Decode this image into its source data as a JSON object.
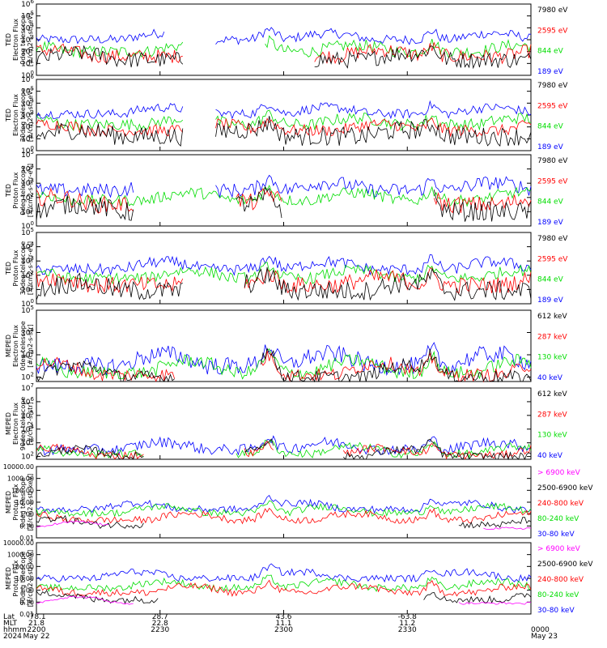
{
  "figure": {
    "colors": {
      "black": "#000000",
      "blue": "#0000ff",
      "red": "#ff0000",
      "green": "#00dd00",
      "magenta": "#ff00ff"
    }
  },
  "chart_data": [
    {
      "type": "line",
      "ylabel_lines": [
        "TED",
        "Electron Flux",
        "0deg telescope",
        "[#/cm2-s-str-eV]"
      ],
      "yscale": "log",
      "ylim_exp": [
        0,
        6
      ],
      "ytick_exps": [
        0,
        1,
        2,
        3,
        4,
        5,
        6
      ],
      "series": [
        {
          "name": "7980 eV",
          "color": "#000000",
          "level": 1.3,
          "noise": 0.7,
          "gaps": [
            [
              0.3,
              0.56
            ]
          ]
        },
        {
          "name": "2595 eV",
          "color": "#ff0000",
          "level": 1.6,
          "noise": 0.6,
          "gaps": [
            [
              0.3,
              0.56
            ]
          ]
        },
        {
          "name": "844 eV",
          "color": "#00dd00",
          "level": 2.0,
          "noise": 0.5,
          "gaps": [
            [
              0.3,
              0.46
            ]
          ]
        },
        {
          "name": "189 eV",
          "color": "#0000ff",
          "level": 3.0,
          "noise": 0.4,
          "gaps": [
            [
              0.26,
              0.36
            ]
          ]
        }
      ]
    },
    {
      "type": "line",
      "ylabel_lines": [
        "TED",
        "Electron Flux",
        "30deg telescope",
        "[#/cm2-s-str-eV]"
      ],
      "yscale": "log",
      "ylim_exp": [
        0,
        6
      ],
      "ytick_exps": [
        0,
        1,
        2,
        3,
        4,
        5,
        6
      ],
      "series": [
        {
          "name": "7980 eV",
          "color": "#000000",
          "level": 1.2,
          "noise": 0.8,
          "gaps": [
            [
              0.3,
              0.36
            ]
          ]
        },
        {
          "name": "2595 eV",
          "color": "#ff0000",
          "level": 1.7,
          "noise": 0.5,
          "gaps": [
            [
              0.3,
              0.36
            ]
          ]
        },
        {
          "name": "844 eV",
          "color": "#00dd00",
          "level": 2.2,
          "noise": 0.5,
          "gaps": [
            [
              0.3,
              0.36
            ]
          ]
        },
        {
          "name": "189 eV",
          "color": "#0000ff",
          "level": 3.1,
          "noise": 0.4,
          "gaps": [
            [
              0.3,
              0.36
            ]
          ]
        }
      ]
    },
    {
      "type": "line",
      "ylabel_lines": [
        "TED",
        "Proton Flux",
        "0deg telescope",
        "[#/cm2-s-str-eV]"
      ],
      "yscale": "log",
      "ylim_exp": [
        0,
        5
      ],
      "ytick_exps": [
        0,
        1,
        2,
        3,
        4,
        5
      ],
      "series": [
        {
          "name": "7980 eV",
          "color": "#000000",
          "level": 1.0,
          "noise": 0.7,
          "gaps": [
            [
              0.2,
              0.4
            ],
            [
              0.5,
              0.8
            ]
          ]
        },
        {
          "name": "2595 eV",
          "color": "#ff0000",
          "level": 1.5,
          "noise": 0.6,
          "gaps": [
            [
              0.2,
              0.4
            ],
            [
              0.5,
              0.8
            ]
          ]
        },
        {
          "name": "844 eV",
          "color": "#00dd00",
          "level": 1.8,
          "noise": 0.4,
          "gaps": []
        },
        {
          "name": "189 eV",
          "color": "#0000ff",
          "level": 2.5,
          "noise": 0.5,
          "gaps": [
            [
              0.2,
              0.36
            ]
          ]
        }
      ]
    },
    {
      "type": "line",
      "ylabel_lines": [
        "TED",
        "Proton Flux",
        "30deg telescope",
        "[#/cm2-s-str-eV]"
      ],
      "yscale": "log",
      "ylim_exp": [
        0,
        5
      ],
      "ytick_exps": [
        0,
        1,
        2,
        3,
        4,
        5
      ],
      "series": [
        {
          "name": "7980 eV",
          "color": "#000000",
          "level": 0.9,
          "noise": 0.7,
          "gaps": [
            [
              0.3,
              0.42
            ]
          ]
        },
        {
          "name": "2595 eV",
          "color": "#ff0000",
          "level": 1.3,
          "noise": 0.6,
          "gaps": [
            [
              0.3,
              0.42
            ]
          ]
        },
        {
          "name": "844 eV",
          "color": "#00dd00",
          "level": 1.8,
          "noise": 0.4,
          "gaps": []
        },
        {
          "name": "189 eV",
          "color": "#0000ff",
          "level": 2.4,
          "noise": 0.4,
          "gaps": []
        }
      ]
    },
    {
      "type": "line",
      "ylabel_lines": [
        "MEPED",
        "Electron Flux",
        "0deg telescope",
        "[#/cm2-s-str]"
      ],
      "yscale": "log",
      "ylim_exp": [
        1.8,
        5
      ],
      "ytick_exps": [
        2,
        3,
        4,
        5
      ],
      "series": [
        {
          "name": "612 keV",
          "color": "#000000",
          "level": 2.0,
          "noise": 0.3,
          "gaps": [
            [
              0.28,
              0.45
            ]
          ]
        },
        {
          "name": "287 keV",
          "color": "#ff0000",
          "level": 2.1,
          "noise": 0.3,
          "gaps": [
            [
              0.28,
              0.45
            ]
          ]
        },
        {
          "name": "130 keV",
          "color": "#00dd00",
          "level": 2.2,
          "noise": 0.3,
          "gaps": []
        },
        {
          "name": "40 keV",
          "color": "#0000ff",
          "level": 2.5,
          "noise": 0.4,
          "gaps": []
        }
      ]
    },
    {
      "type": "line",
      "ylabel_lines": [
        "MEPED",
        "Electron Flux",
        "90deg telescope",
        "[#/cm2-s-str]"
      ],
      "yscale": "log",
      "ylim_exp": [
        1.8,
        7
      ],
      "ytick_exps": [
        2,
        3,
        4,
        5,
        6,
        7
      ],
      "series": [
        {
          "name": "612 keV",
          "color": "#000000",
          "level": 2.0,
          "noise": 0.3,
          "gaps": [
            [
              0.22,
              0.42
            ],
            [
              0.48,
              0.62
            ]
          ]
        },
        {
          "name": "287 keV",
          "color": "#ff0000",
          "level": 2.1,
          "noise": 0.3,
          "gaps": [
            [
              0.22,
              0.42
            ],
            [
              0.48,
              0.62
            ]
          ]
        },
        {
          "name": "130 keV",
          "color": "#00dd00",
          "level": 2.2,
          "noise": 0.3,
          "gaps": [
            [
              0.22,
              0.4
            ]
          ]
        },
        {
          "name": "40 keV",
          "color": "#0000ff",
          "level": 2.5,
          "noise": 0.4,
          "gaps": []
        }
      ]
    },
    {
      "type": "line",
      "ylabel_lines": [
        "MEPED",
        "Proton Flux",
        "0deg telescope",
        "[#/cm2-s-str-keV]"
      ],
      "yscale": "log",
      "ylim_exp": [
        -2,
        4
      ],
      "ytick_labels": [
        "0.01",
        "0.10",
        "1.00",
        "10.00",
        "100.00",
        "1000.00",
        "10000.00"
      ],
      "ytick_exps": [
        -2,
        -1,
        0,
        1,
        2,
        3,
        4
      ],
      "series": [
        {
          "name": "> 6900 keV",
          "color": "#ff00ff",
          "level": -1.2,
          "noise": 0.1,
          "gaps": [
            [
              0.15,
              0.9
            ]
          ]
        },
        {
          "name": "2500-6900 keV",
          "color": "#000000",
          "level": -0.9,
          "noise": 0.3,
          "gaps": [
            [
              0.22,
              0.85
            ]
          ]
        },
        {
          "name": "240-800 keV",
          "color": "#ff0000",
          "level": -0.5,
          "noise": 0.3,
          "gaps": []
        },
        {
          "name": "80-240 keV",
          "color": "#00dd00",
          "level": 0.1,
          "noise": 0.3,
          "gaps": []
        },
        {
          "name": "30-80 keV",
          "color": "#0000ff",
          "level": 0.4,
          "noise": 0.3,
          "gaps": []
        }
      ]
    },
    {
      "type": "line",
      "ylabel_lines": [
        "MEPED",
        "Proton Flux",
        "90deg telescope",
        "[#/cm2-s-str-keV]"
      ],
      "yscale": "log",
      "ylim_exp": [
        -2,
        4
      ],
      "ytick_labels": [
        "0.01",
        "0.10",
        "1.00",
        "10.00",
        "100.00",
        "1000.00",
        "10000.00"
      ],
      "ytick_exps": [
        -2,
        -1,
        0,
        1,
        2,
        3,
        4
      ],
      "series": [
        {
          "name": "> 6900 keV",
          "color": "#ff00ff",
          "level": -1.1,
          "noise": 0.1,
          "gaps": [
            [
              0.2,
              0.85
            ]
          ]
        },
        {
          "name": "2500-6900 keV",
          "color": "#000000",
          "level": -0.8,
          "noise": 0.3,
          "gaps": [
            [
              0.25,
              0.78
            ]
          ]
        },
        {
          "name": "240-800 keV",
          "color": "#ff0000",
          "level": -0.2,
          "noise": 0.3,
          "gaps": []
        },
        {
          "name": "80-240 keV",
          "color": "#00dd00",
          "level": 0.2,
          "noise": 0.3,
          "gaps": []
        },
        {
          "name": "30-80 keV",
          "color": "#0000ff",
          "level": 1.0,
          "noise": 0.3,
          "gaps": []
        }
      ]
    }
  ],
  "time_axis": {
    "row_labels": [
      "Lat",
      "MLT",
      "hhmm",
      "2024"
    ],
    "columns": [
      {
        "lat": "-78.1",
        "mlt": "21.8",
        "hhmm": "2200",
        "date": "May 22"
      },
      {
        "lat": "28.7",
        "mlt": "22.8",
        "hhmm": "2230",
        "date": ""
      },
      {
        "lat": "43.6",
        "mlt": "11.1",
        "hhmm": "2300",
        "date": ""
      },
      {
        "lat": "-63.8",
        "mlt": "11.2",
        "hhmm": "2330",
        "date": ""
      },
      {
        "lat": "",
        "mlt": "",
        "hhmm": "0000",
        "date": "May 23"
      }
    ]
  }
}
